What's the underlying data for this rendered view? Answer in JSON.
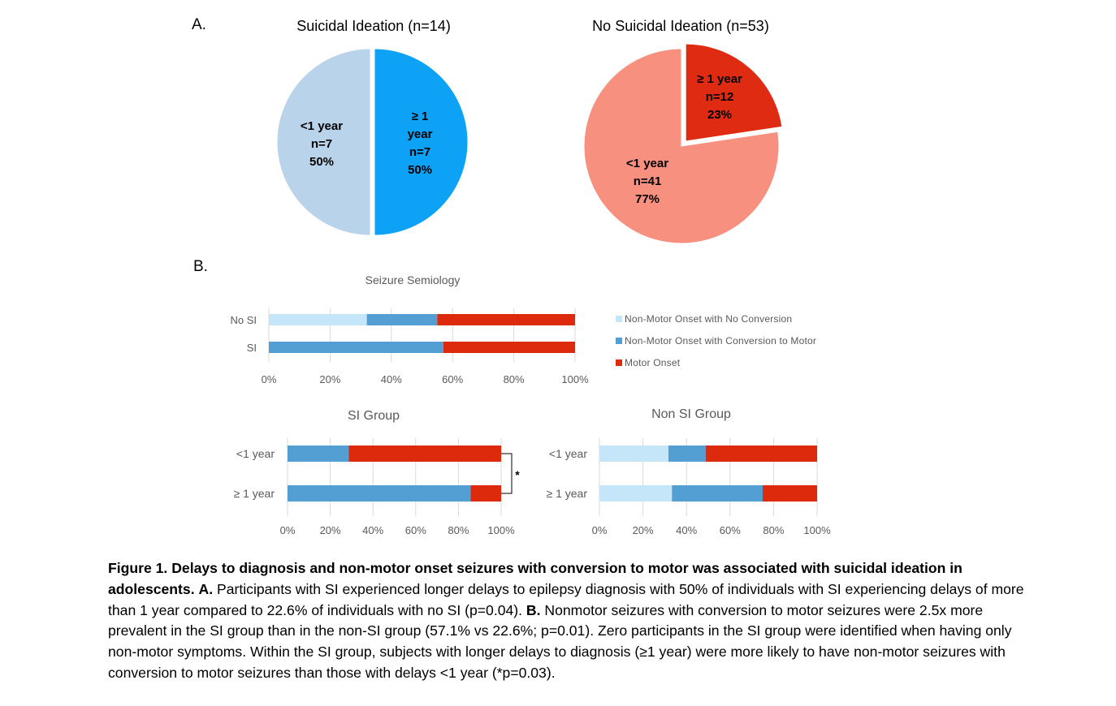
{
  "panel_labels": {
    "a": "A.",
    "b": "B."
  },
  "colors": {
    "si_lt1": "#b8d3ea",
    "si_ge1": "#0ea2f7",
    "nosi_lt1": "#f7907f",
    "nosi_ge1": "#de2b12",
    "nonmotor_no_conversion": "#c5e5f8",
    "nonmotor_conversion": "#539fd3",
    "motor_onset": "#de2a0c",
    "grid": "#d9d9d9",
    "axis_text": "#595959"
  },
  "chart_data": [
    {
      "id": "pie-si",
      "type": "pie",
      "title": "Suicidal Ideation (n=14)",
      "slices": [
        {
          "label": "≥ 1 year",
          "label_lines": [
            "≥ 1",
            "year",
            "n=7",
            "50%"
          ],
          "n": 7,
          "percent": 50,
          "color_key": "si_ge1",
          "exploded": true
        },
        {
          "label": "<1 year",
          "label_lines": [
            "<1 year",
            "n=7",
            "50%"
          ],
          "n": 7,
          "percent": 50,
          "color_key": "si_lt1",
          "exploded": false
        }
      ]
    },
    {
      "id": "pie-nosi",
      "type": "pie",
      "title": "No Suicidal Ideation (n=53)",
      "slices": [
        {
          "label": "≥ 1 year",
          "label_lines": [
            "≥ 1 year",
            "n=12",
            "23%"
          ],
          "n": 12,
          "percent": 23,
          "color_key": "nosi_ge1",
          "exploded": true
        },
        {
          "label": "<1 year",
          "label_lines": [
            "<1 year",
            "n=41",
            "77%"
          ],
          "n": 41,
          "percent": 77,
          "color_key": "nosi_lt1",
          "exploded": false
        }
      ]
    },
    {
      "id": "bar-semiology",
      "type": "bar",
      "orientation": "horizontal",
      "stacked": "percent",
      "title": "Seizure Semiology",
      "categories": [
        "No SI",
        "SI"
      ],
      "series": [
        {
          "name": "Non-Motor Onset with No Conversion",
          "color_key": "nonmotor_no_conversion",
          "values": [
            32,
            0
          ]
        },
        {
          "name": "Non-Motor Onset with Conversion to Motor",
          "color_key": "nonmotor_conversion",
          "values": [
            23,
            57
          ]
        },
        {
          "name": "Motor Onset",
          "color_key": "motor_onset",
          "values": [
            45,
            43
          ]
        }
      ],
      "xlim": [
        0,
        100
      ],
      "xticks": [
        "0%",
        "20%",
        "40%",
        "60%",
        "80%",
        "100%"
      ],
      "grid": true,
      "legend": "right"
    },
    {
      "id": "bar-si-group",
      "type": "bar",
      "orientation": "horizontal",
      "stacked": "percent",
      "title": "SI Group",
      "categories": [
        "<1 year",
        "≥ 1 year"
      ],
      "series": [
        {
          "name": "Non-Motor Onset with No Conversion",
          "color_key": "nonmotor_no_conversion",
          "values": [
            0,
            0
          ]
        },
        {
          "name": "Non-Motor Onset with Conversion to Motor",
          "color_key": "nonmotor_conversion",
          "values": [
            28.6,
            85.7
          ]
        },
        {
          "name": "Motor Onset",
          "color_key": "motor_onset",
          "values": [
            71.4,
            14.3
          ]
        }
      ],
      "xlim": [
        0,
        100
      ],
      "xticks": [
        "0%",
        "20%",
        "40%",
        "60%",
        "80%",
        "100%"
      ],
      "grid": true,
      "annotation": "*"
    },
    {
      "id": "bar-nonsi-group",
      "type": "bar",
      "orientation": "horizontal",
      "stacked": "percent",
      "title": "Non SI Group",
      "categories": [
        "<1 year",
        "≥ 1 year"
      ],
      "series": [
        {
          "name": "Non-Motor Onset with No Conversion",
          "color_key": "nonmotor_no_conversion",
          "values": [
            31.7,
            33.3
          ]
        },
        {
          "name": "Non-Motor Onset with Conversion to Motor",
          "color_key": "nonmotor_conversion",
          "values": [
            17.1,
            41.7
          ]
        },
        {
          "name": "Motor Onset",
          "color_key": "motor_onset",
          "values": [
            51.2,
            25.0
          ]
        }
      ],
      "xlim": [
        0,
        100
      ],
      "xticks": [
        "0%",
        "20%",
        "40%",
        "60%",
        "80%",
        "100%"
      ],
      "grid": true
    }
  ],
  "caption": {
    "bold_lead": "Figure 1. Delays to diagnosis and non-motor onset seizures with conversion to motor was associated with suicidal ideation in adolescents.",
    "a_label": "A.",
    "a_text": "Participants with SI experienced longer delays to epilepsy diagnosis with 50% of individuals with SI experiencing delays of more than 1 year compared to 22.6% of individuals with no SI (p=0.04).",
    "b_label": "B.",
    "b_text": "Nonmotor seizures with conversion to motor seizures were 2.5x more prevalent in the SI group than in the non-SI group (57.1% vs 22.6%; p=0.01). Zero participants in the SI group were identified when having only non-motor symptoms. Within the SI group, subjects with longer delays to diagnosis (≥1 year) were more likely to have non-motor seizures with conversion to motor seizures than those with delays <1 year (*p=0.03)."
  }
}
